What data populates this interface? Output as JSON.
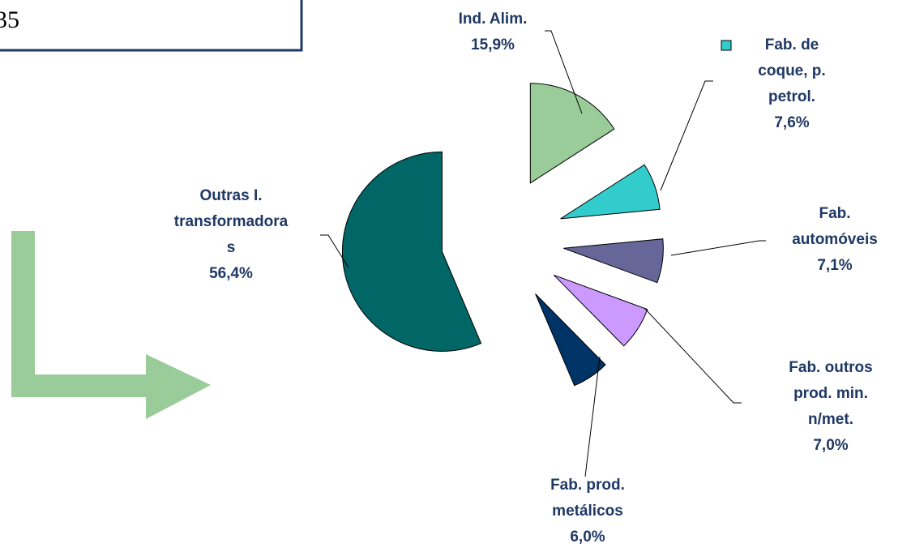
{
  "box_text": "35",
  "chart_data": {
    "type": "pie",
    "categories": [
      "Ind. Alim.",
      "Fab. de coque, p. petrol.",
      "Fab. automóveis",
      "Fab. outros prod. min. n/met.",
      "Fab. prod. metálicos",
      "Outras I. transformadoras"
    ],
    "values": [
      15.9,
      7.6,
      7.1,
      7.0,
      6.0,
      56.4
    ],
    "value_labels": [
      "15,9%",
      "7,6%",
      "7,1%",
      "7,0%",
      "6,0%",
      "56,4%"
    ],
    "colors": [
      "#99cc99",
      "#33cccc",
      "#666699",
      "#cc99ff",
      "#003366",
      "#006666"
    ]
  }
}
